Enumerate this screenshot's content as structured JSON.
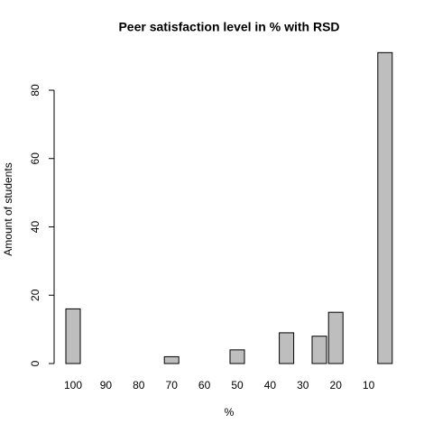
{
  "chart_data": {
    "type": "bar",
    "title": "Peer satisfaction level in % with RSD",
    "xlabel": "%",
    "ylabel": "Amount of students",
    "categories": [
      "100",
      null,
      "90",
      null,
      "80",
      null,
      "70",
      null,
      "60",
      null,
      "50",
      null,
      "40",
      null,
      "30",
      null,
      "20",
      null,
      "10",
      null
    ],
    "values": [
      16,
      0,
      0,
      0,
      0,
      0,
      2,
      0,
      0,
      0,
      4,
      0,
      0,
      9,
      0,
      8,
      15,
      0,
      0,
      91
    ],
    "color": "#bebebe",
    "ylim": [
      0,
      91
    ],
    "yticks": [
      0,
      20,
      40,
      60,
      80
    ],
    "grid": false
  }
}
